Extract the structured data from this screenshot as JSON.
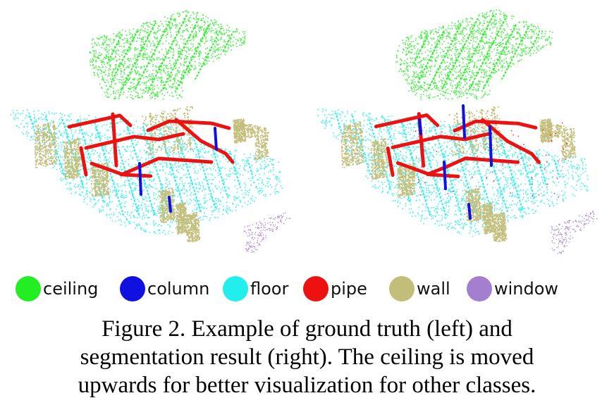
{
  "figure": {
    "panels": [
      {
        "name": "ground truth"
      },
      {
        "name": "segmentation result"
      }
    ],
    "legend": [
      {
        "label": "ceiling",
        "color": "#22ee22"
      },
      {
        "label": "column",
        "color": "#1010e0"
      },
      {
        "label": "floor",
        "color": "#22eeee"
      },
      {
        "label": "pipe",
        "color": "#ee1111"
      },
      {
        "label": "wall",
        "color": "#c2bd78"
      },
      {
        "label": "window",
        "color": "#a57fcf"
      }
    ],
    "caption": {
      "line1": "Figure 2. Example of ground truth (left) and",
      "line2": "segmentation result (right). The ceiling is moved",
      "line3": "upwards for better visualization for other classes."
    }
  }
}
